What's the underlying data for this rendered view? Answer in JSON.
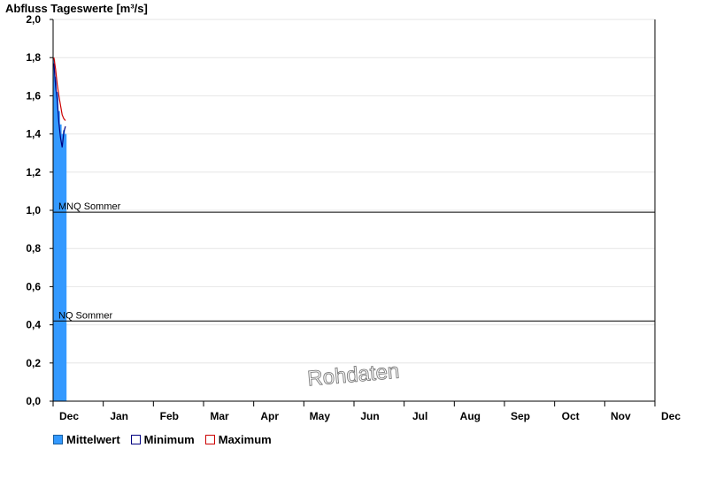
{
  "chart_data": {
    "type": "bar",
    "title": "Abfluss Tageswerte [m³/s]",
    "ylim": [
      0,
      2.0
    ],
    "yticks": [
      "2,0",
      "1,8",
      "1,6",
      "1,4",
      "1,2",
      "1,0",
      "0,8",
      "0,6",
      "0,4",
      "0,2",
      "0,0"
    ],
    "yticks_values": [
      2.0,
      1.8,
      1.6,
      1.4,
      1.2,
      1.0,
      0.8,
      0.6,
      0.4,
      0.2,
      0.0
    ],
    "months": [
      "Dec",
      "Jan",
      "Feb",
      "Mar",
      "Apr",
      "May",
      "Jun",
      "Jul",
      "Aug",
      "Sep",
      "Oct",
      "Nov",
      "Dec"
    ],
    "grid": true,
    "series": [
      {
        "name": "Mittelwert",
        "kind": "bar",
        "color": "#3399ff",
        "values": [
          1.79,
          1.7,
          1.62,
          1.52,
          1.45,
          1.4,
          1.42,
          1.4
        ]
      },
      {
        "name": "Minimum",
        "kind": "line",
        "color": "#000080",
        "values": [
          1.77,
          1.65,
          1.58,
          1.46,
          1.38,
          1.33,
          1.41,
          1.44
        ]
      },
      {
        "name": "Maximum",
        "kind": "line",
        "color": "#cc0000",
        "values": [
          1.8,
          1.74,
          1.66,
          1.6,
          1.55,
          1.5,
          1.48,
          1.47
        ]
      }
    ],
    "reference_lines": [
      {
        "label": "MNQ Sommer",
        "value": 0.99
      },
      {
        "label": "NQ Sommer",
        "value": 0.42
      }
    ],
    "watermark": "Rohdaten",
    "legend_position": "bottom-left"
  },
  "legend": {
    "mittelwert": "Mittelwert",
    "minimum": "Minimum",
    "maximum": "Maximum"
  }
}
